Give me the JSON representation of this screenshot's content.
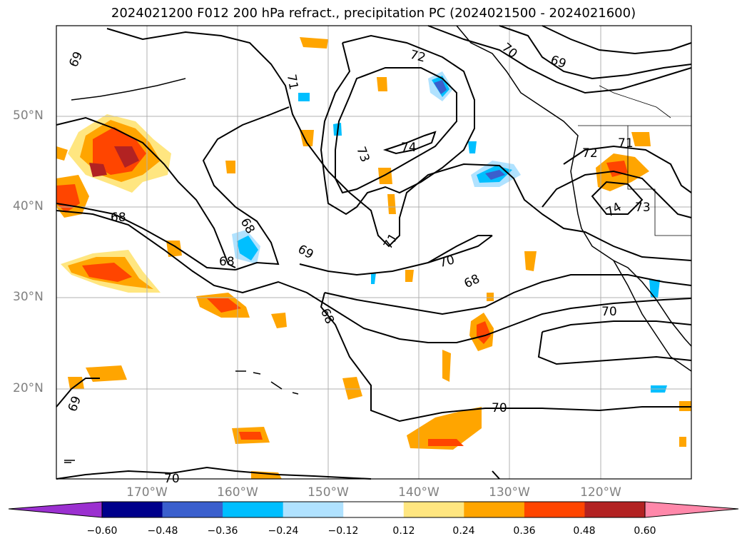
{
  "title": "2024021200 F012 200 hPa refract., precipitation PC (2024021500 - 2024021600)",
  "lat_labels": [
    "50°N",
    "40°N",
    "30°N",
    "20°N"
  ],
  "lon_labels": [
    "170°W",
    "160°W",
    "150°W",
    "140°W",
    "130°W",
    "120°W"
  ],
  "contour_labels": [
    "69",
    "71",
    "72",
    "70",
    "69",
    "73",
    "74",
    "72",
    "71",
    "74",
    "73",
    "68",
    "68",
    "68",
    "69",
    "71",
    "70",
    "68",
    "68",
    "70",
    "69",
    "70"
  ],
  "colorbar": {
    "ticks": [
      "−0.60",
      "−0.48",
      "−0.36",
      "−0.24",
      "−0.12",
      "0.12",
      "0.24",
      "0.36",
      "0.48",
      "0.60"
    ],
    "colors": [
      "#9b30d0",
      "#00008b",
      "#3a5fcd",
      "#00bfff",
      "#b0e2ff",
      "#ffffff",
      "#ffe680",
      "#ffa500",
      "#ff4500",
      "#b22222",
      "#ff88aa"
    ]
  },
  "colors": {
    "grid": "#b0b0b0",
    "contour": "#000000",
    "positive_light": "#ffe680",
    "positive_mid": "#ffa500",
    "positive_strong": "#ff4500",
    "positive_max": "#b22222",
    "negative_light": "#b0e2ff",
    "negative_mid": "#00bfff",
    "negative_strong": "#3a5fcd"
  }
}
